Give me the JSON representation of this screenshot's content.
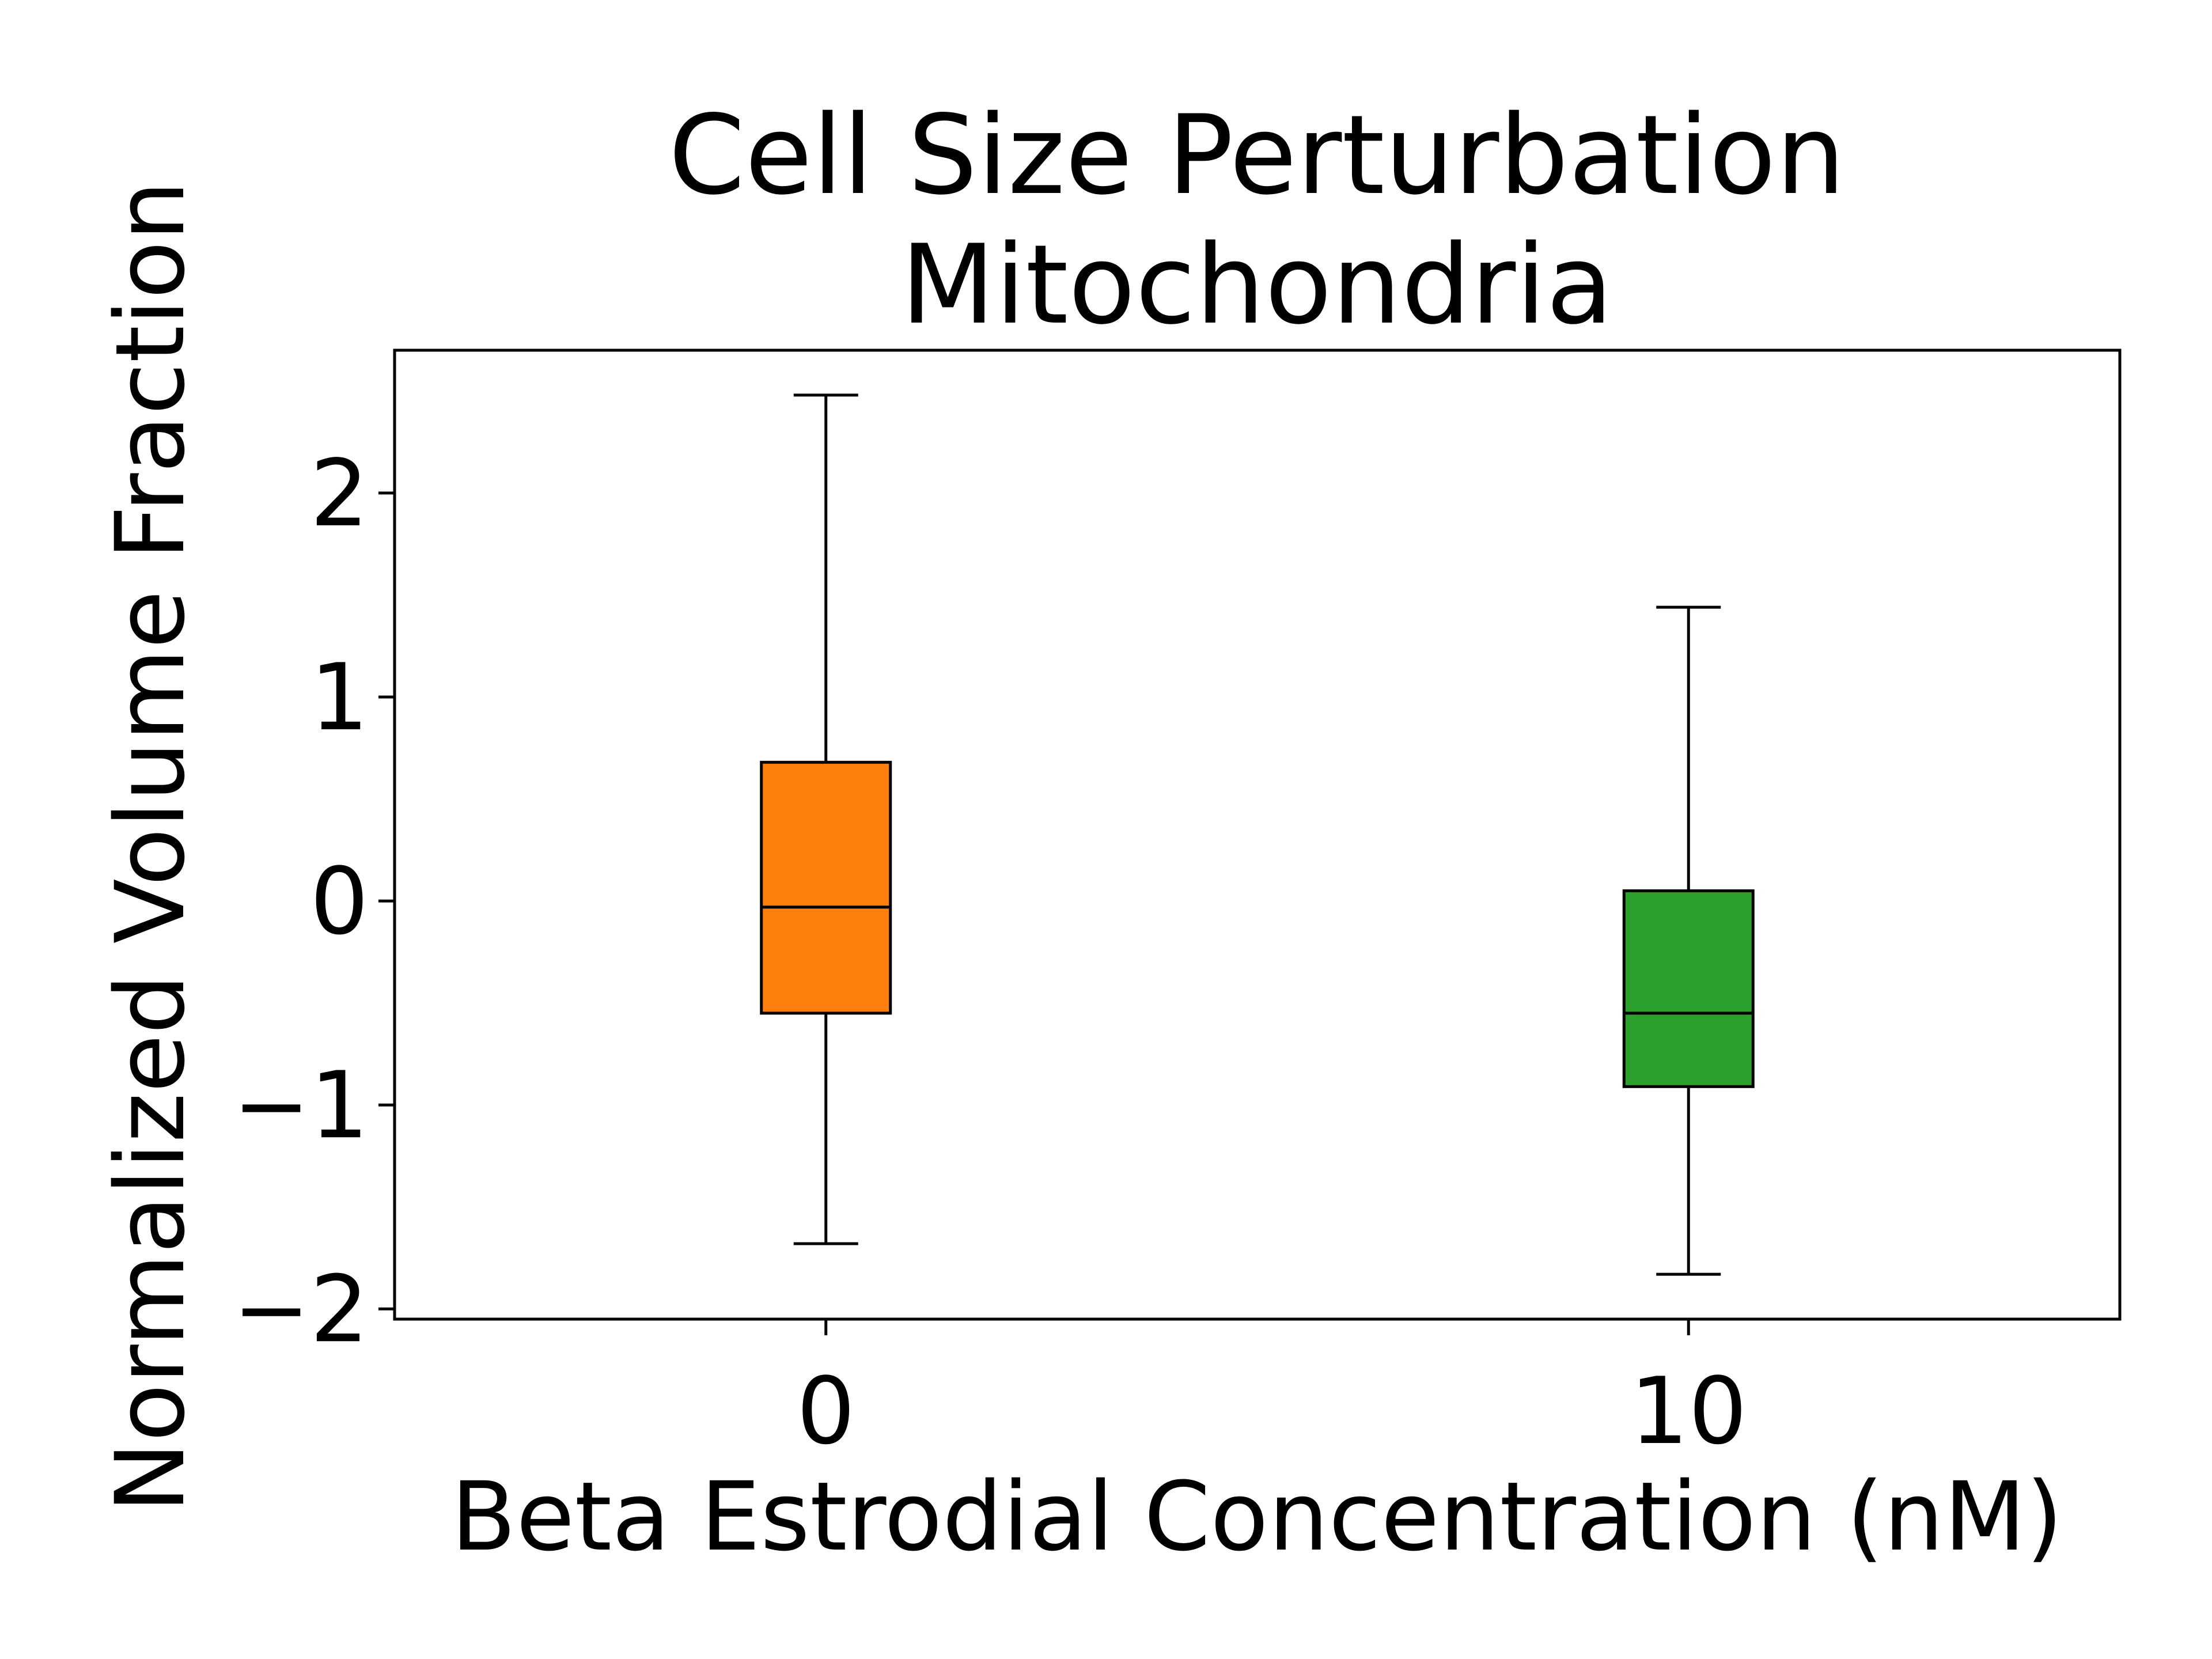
{
  "chart_data": {
    "type": "box",
    "title": [
      "Cell Size Perturbation",
      "Mitochondria"
    ],
    "xlabel": "Beta Estrodial Concentration (nM)",
    "ylabel": "Normalized Volume Fraction",
    "categories": [
      "0",
      "10"
    ],
    "yticks": [
      2,
      1,
      0,
      -1,
      -2
    ],
    "ytick_labels": [
      "2",
      "1",
      "0",
      "−1",
      "−2"
    ],
    "ylim": [
      -2.05,
      2.7
    ],
    "xlim": [
      -0.5,
      1.5
    ],
    "grid": false,
    "boxes": [
      {
        "category": "0",
        "whisker_low": -1.68,
        "q1": -0.55,
        "median": -0.03,
        "q3": 0.68,
        "whisker_high": 2.48,
        "color": "#ff7f0e"
      },
      {
        "category": "10",
        "whisker_low": -1.83,
        "q1": -0.91,
        "median": -0.55,
        "q3": 0.05,
        "whisker_high": 1.44,
        "color": "#2ca02c"
      }
    ]
  }
}
